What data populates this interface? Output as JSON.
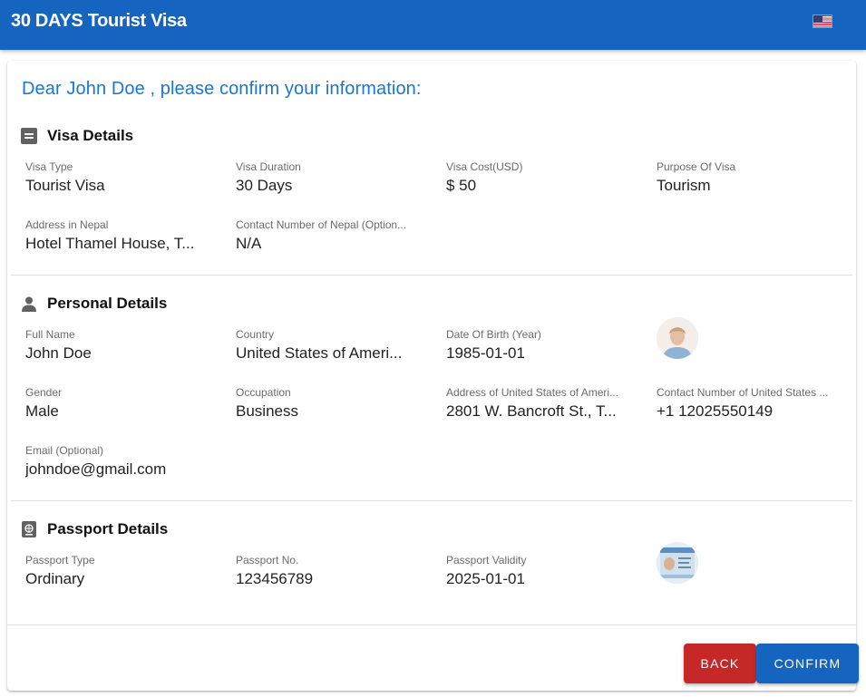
{
  "header": {
    "title": "30 DAYS Tourist Visa",
    "language_icon": "us-flag-icon"
  },
  "greeting": "Dear John Doe , please confirm your information:",
  "sections": {
    "visa": {
      "title": "Visa Details",
      "icon": "card-icon",
      "fields": [
        {
          "label": "Visa Type",
          "value": "Tourist Visa"
        },
        {
          "label": "Visa Duration",
          "value": "30 Days"
        },
        {
          "label": "Visa Cost(USD)",
          "value": "$ 50"
        },
        {
          "label": "Purpose Of Visa",
          "value": "Tourism"
        },
        {
          "label": "Address in Nepal",
          "value": "Hotel Thamel House, T..."
        },
        {
          "label": "Contact Number of Nepal (Option...",
          "value": "N/A"
        }
      ]
    },
    "personal": {
      "title": "Personal Details",
      "icon": "person-icon",
      "fields": [
        {
          "label": "Full Name",
          "value": "John Doe"
        },
        {
          "label": "Country",
          "value": "United States of Ameri..."
        },
        {
          "label": "Date Of Birth (Year)",
          "value": "1985-01-01"
        },
        {
          "label": "Gender",
          "value": "Male"
        },
        {
          "label": "Occupation",
          "value": "Business"
        },
        {
          "label": "Address of United States of Ameri...",
          "value": "2801 W. Bancroft St., T..."
        },
        {
          "label": "Contact Number of United States ...",
          "value": "+1 12025550149"
        },
        {
          "label": "Email (Optional)",
          "value": "johndoe@gmail.com"
        }
      ]
    },
    "passport": {
      "title": "Passport Details",
      "icon": "passport-icon",
      "fields": [
        {
          "label": "Passport Type",
          "value": "Ordinary"
        },
        {
          "label": "Passport No.",
          "value": "123456789"
        },
        {
          "label": "Passport Validity",
          "value": "2025-01-01"
        }
      ]
    }
  },
  "buttons": {
    "back": "BACK",
    "confirm": "CONFIRM"
  },
  "colors": {
    "primary": "#1565c0",
    "greeting": "#1976d2",
    "danger": "#c62828"
  }
}
